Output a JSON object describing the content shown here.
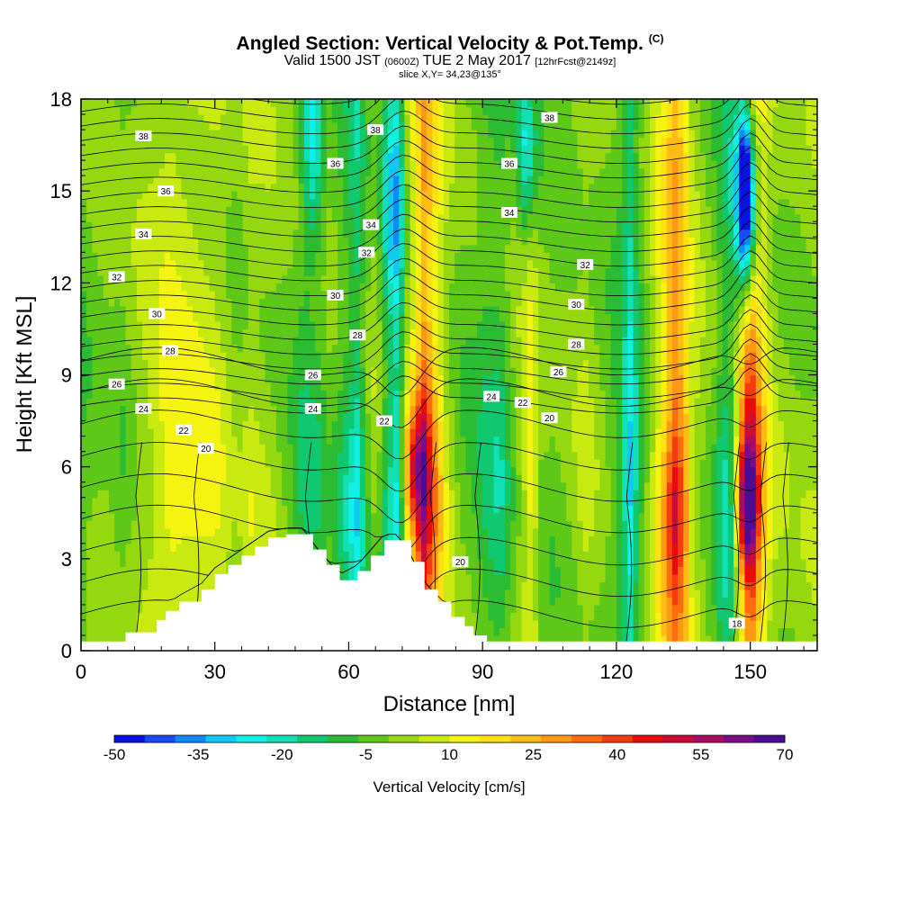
{
  "header": {
    "title": "Angled Section: Vertical Velocity & Pot.Temp.",
    "title_mark": "(C)",
    "valid_a": "Valid 1500 JST",
    "valid_b": "(0600Z)",
    "valid_c": "TUE 2 May 2017",
    "valid_d": "[12hrFcst@2149z]",
    "slice": "slice X,Y= 34,23@135°"
  },
  "chart_data": {
    "type": "heatmap",
    "xlabel": "Distance [nm]",
    "ylabel": "Height [Kft MSL]",
    "xlim": [
      0,
      165
    ],
    "ylim": [
      0,
      18
    ],
    "xticks": [
      "0",
      "30",
      "60",
      "90",
      "120",
      "150"
    ],
    "yticks": [
      "0",
      "3",
      "6",
      "9",
      "12",
      "15",
      "18"
    ],
    "colorbar": {
      "label": "Vertical Velocity [cm/s]",
      "ticks": [
        "-50",
        "-35",
        "-20",
        "-5",
        "10",
        "25",
        "40",
        "55",
        "70"
      ],
      "levels": [
        -50,
        70
      ],
      "colors": [
        "#0a12e6",
        "#1a4cf6",
        "#0e8cf6",
        "#10c8f4",
        "#10f0e8",
        "#10e0b4",
        "#10c870",
        "#2cbc34",
        "#5ec818",
        "#96d810",
        "#c8ea10",
        "#f4f410",
        "#ffe012",
        "#ffbc14",
        "#ff9814",
        "#ff6c10",
        "#f43c10",
        "#e80c0c",
        "#cc0c38",
        "#a80c64",
        "#7c0c8c",
        "#4c0c94"
      ]
    },
    "theta_contours_C": [
      18,
      20,
      22,
      24,
      26,
      28,
      30,
      32,
      34,
      36,
      38
    ],
    "contour_labels": [
      {
        "text": "38",
        "x": 14,
        "y": 16.8
      },
      {
        "text": "38",
        "x": 66,
        "y": 17.0
      },
      {
        "text": "38",
        "x": 105,
        "y": 17.4
      },
      {
        "text": "36",
        "x": 19,
        "y": 15.0
      },
      {
        "text": "36",
        "x": 57,
        "y": 15.9
      },
      {
        "text": "36",
        "x": 96,
        "y": 15.9
      },
      {
        "text": "34",
        "x": 14,
        "y": 13.6
      },
      {
        "text": "34",
        "x": 65,
        "y": 13.9
      },
      {
        "text": "34",
        "x": 96,
        "y": 14.3
      },
      {
        "text": "32",
        "x": 8,
        "y": 12.2
      },
      {
        "text": "32",
        "x": 64,
        "y": 13.0
      },
      {
        "text": "32",
        "x": 113,
        "y": 12.6
      },
      {
        "text": "30",
        "x": 17,
        "y": 11.0
      },
      {
        "text": "30",
        "x": 57,
        "y": 11.6
      },
      {
        "text": "30",
        "x": 111,
        "y": 11.3
      },
      {
        "text": "28",
        "x": 20,
        "y": 9.8
      },
      {
        "text": "28",
        "x": 62,
        "y": 10.3
      },
      {
        "text": "28",
        "x": 111,
        "y": 10.0
      },
      {
        "text": "26",
        "x": 8,
        "y": 8.7
      },
      {
        "text": "26",
        "x": 52,
        "y": 9.0
      },
      {
        "text": "26",
        "x": 107,
        "y": 9.1
      },
      {
        "text": "24",
        "x": 14,
        "y": 7.9
      },
      {
        "text": "24",
        "x": 52,
        "y": 7.9
      },
      {
        "text": "24",
        "x": 92,
        "y": 8.3
      },
      {
        "text": "22",
        "x": 23,
        "y": 7.2
      },
      {
        "text": "22",
        "x": 68,
        "y": 7.5
      },
      {
        "text": "22",
        "x": 99,
        "y": 8.1
      },
      {
        "text": "20",
        "x": 28,
        "y": 6.6
      },
      {
        "text": "20",
        "x": 85,
        "y": 2.9
      },
      {
        "text": "20",
        "x": 105,
        "y": 7.6
      },
      {
        "text": "18",
        "x": 147,
        "y": 0.9
      }
    ],
    "terrain_kft": [
      [
        0,
        0.3
      ],
      [
        10,
        0.6
      ],
      [
        17,
        1.0
      ],
      [
        19,
        1.3
      ],
      [
        22,
        1.6
      ],
      [
        27,
        2.0
      ],
      [
        30,
        2.5
      ],
      [
        33,
        2.8
      ],
      [
        36,
        3.1
      ],
      [
        39,
        3.4
      ],
      [
        42,
        3.7
      ],
      [
        46,
        3.8
      ],
      [
        50,
        3.8
      ],
      [
        52,
        3.3
      ],
      [
        55,
        2.8
      ],
      [
        58,
        2.3
      ],
      [
        62,
        2.6
      ],
      [
        65,
        3.1
      ],
      [
        68,
        3.6
      ],
      [
        71,
        3.6
      ],
      [
        74,
        2.9
      ],
      [
        77,
        2.0
      ],
      [
        80,
        1.6
      ],
      [
        83,
        1.1
      ],
      [
        86,
        0.8
      ],
      [
        88,
        0.5
      ],
      [
        91,
        0.3
      ],
      [
        165,
        0.3
      ]
    ],
    "w_field": {
      "base": [
        [
          0,
          -5
        ],
        [
          3,
          -2
        ],
        [
          6,
          0
        ],
        [
          9,
          -3
        ],
        [
          11,
          0
        ],
        [
          15,
          5
        ],
        [
          20,
          12
        ],
        [
          25,
          10
        ],
        [
          30,
          8
        ],
        [
          35,
          0
        ],
        [
          38,
          5
        ],
        [
          43,
          2
        ],
        [
          47,
          -3
        ],
        [
          50,
          -10
        ],
        [
          53,
          -8
        ],
        [
          56,
          -2
        ],
        [
          59,
          -10
        ],
        [
          62,
          -20
        ],
        [
          64,
          -5
        ],
        [
          66,
          2
        ],
        [
          69,
          -15
        ],
        [
          71,
          -22
        ],
        [
          73,
          5
        ],
        [
          75,
          20
        ],
        [
          77,
          40
        ],
        [
          79,
          25
        ],
        [
          82,
          5
        ],
        [
          85,
          -3
        ],
        [
          88,
          -5
        ],
        [
          91,
          -10
        ],
        [
          94,
          -12
        ],
        [
          96,
          -5
        ],
        [
          99,
          5
        ],
        [
          101,
          12
        ],
        [
          103,
          0
        ],
        [
          106,
          -3
        ],
        [
          110,
          0
        ],
        [
          113,
          4
        ],
        [
          116,
          0
        ],
        [
          119,
          -5
        ],
        [
          121,
          -10
        ],
        [
          123,
          -25
        ],
        [
          125,
          -10
        ],
        [
          127,
          0
        ],
        [
          130,
          15
        ],
        [
          133,
          35
        ],
        [
          135,
          28
        ],
        [
          137,
          8
        ],
        [
          140,
          0
        ],
        [
          142,
          -5
        ],
        [
          144,
          -15
        ],
        [
          146,
          -10
        ],
        [
          148,
          20
        ],
        [
          150,
          45
        ],
        [
          152,
          25
        ],
        [
          154,
          10
        ],
        [
          156,
          2
        ],
        [
          160,
          0
        ],
        [
          165,
          2
        ]
      ],
      "hot_spots": [
        {
          "x": 75,
          "y": 6.0,
          "w": 47
        },
        {
          "x": 133,
          "y": 4.3,
          "w": 43
        },
        {
          "x": 149,
          "y": 4.8,
          "w": 65
        }
      ],
      "cold_streaks": [
        {
          "x": 52,
          "y": 16.5,
          "w": -28
        },
        {
          "x": 70,
          "y": 14.5,
          "w": -38
        },
        {
          "x": 149,
          "y": 15.0,
          "w": -48
        },
        {
          "x": 100,
          "y": 16.5,
          "w": -18
        }
      ]
    }
  }
}
